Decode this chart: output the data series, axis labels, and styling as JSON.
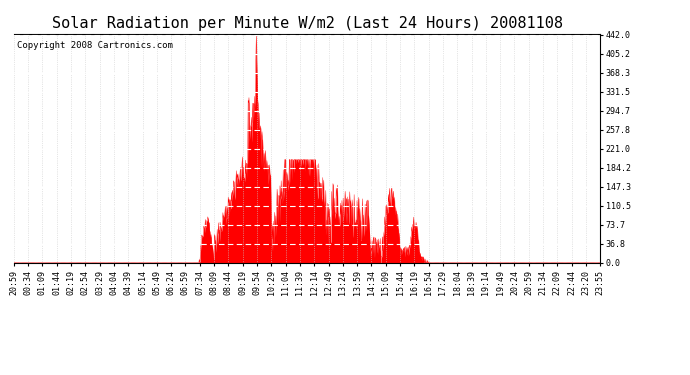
{
  "title": "Solar Radiation per Minute W/m2 (Last 24 Hours) 20081108",
  "copyright_text": "Copyright 2008 Cartronics.com",
  "bg_color": "#ffffff",
  "plot_bg_color": "#ffffff",
  "fill_color": "#ff0000",
  "line_color": "#ff0000",
  "dashed_line_color": "#cccccc",
  "white_dashed_color": "#ffffff",
  "red_dashed_bottom": "#ff0000",
  "grid_color": "#cccccc",
  "ymin": 0.0,
  "ymax": 442.0,
  "yticks": [
    0.0,
    36.8,
    73.7,
    110.5,
    147.3,
    184.2,
    221.0,
    257.8,
    294.7,
    331.5,
    368.3,
    405.2,
    442.0
  ],
  "title_fontsize": 11,
  "copyright_fontsize": 6.5,
  "tick_fontsize": 6.0,
  "x_labels": [
    "20:59",
    "00:34",
    "01:09",
    "01:44",
    "02:19",
    "02:54",
    "03:29",
    "04:04",
    "04:39",
    "05:14",
    "05:49",
    "06:24",
    "06:59",
    "07:34",
    "08:09",
    "08:44",
    "09:19",
    "09:54",
    "10:29",
    "11:04",
    "11:39",
    "12:14",
    "12:49",
    "13:24",
    "13:59",
    "14:34",
    "15:09",
    "15:44",
    "16:19",
    "16:54",
    "17:29",
    "18:04",
    "18:39",
    "19:14",
    "19:49",
    "20:24",
    "20:59",
    "21:34",
    "22:09",
    "22:44",
    "23:20",
    "23:55"
  ]
}
